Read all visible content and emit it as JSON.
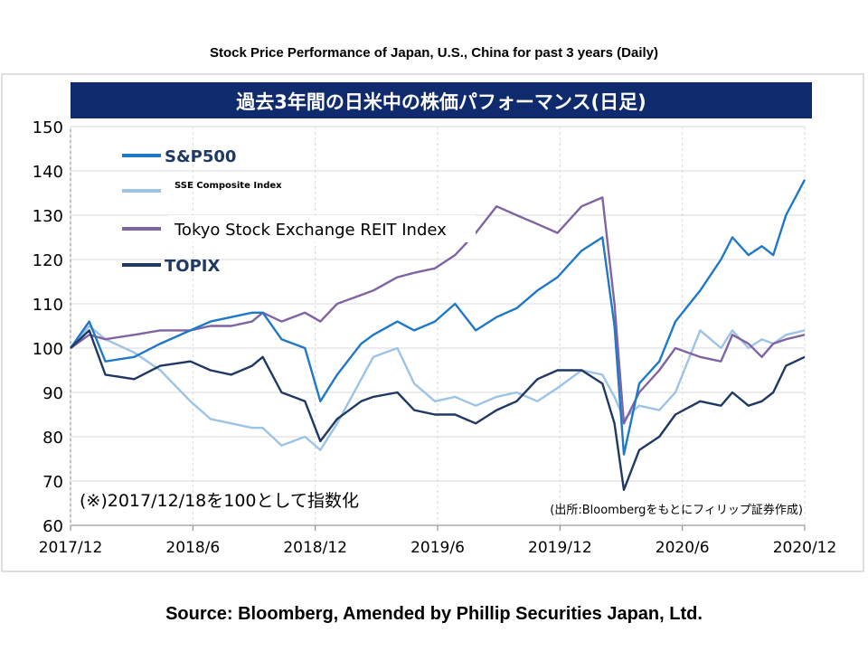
{
  "page_title": "Stock Price Performance of Japan, U.S., China for past 3 years (Daily)",
  "source_text": "Source: Bloomberg, Amended by Phillip Securities Japan, Ltd.",
  "chart_data": {
    "type": "line",
    "title": "過去3年間の日米中の株価パフォーマンス(日足)",
    "note": "(※)2017/12/18を100として指数化",
    "source_note": "(出所:Bloombergをもとにフィリップ証券作成)",
    "xlabel": "",
    "ylabel": "",
    "ylim": [
      60,
      150
    ],
    "y_ticks": [
      60,
      70,
      80,
      90,
      100,
      110,
      120,
      130,
      140,
      150
    ],
    "x_ticks": [
      "2017/12",
      "2018/6",
      "2018/12",
      "2019/6",
      "2019/12",
      "2020/6",
      "2020/12"
    ],
    "grid": true,
    "legend_position": "top-left",
    "x": [
      "2017-12-18",
      "2018-01-15",
      "2018-02-08",
      "2018-03-23",
      "2018-05-01",
      "2018-06-15",
      "2018-07-15",
      "2018-08-15",
      "2018-09-15",
      "2018-10-01",
      "2018-10-29",
      "2018-12-03",
      "2018-12-26",
      "2019-01-20",
      "2019-02-25",
      "2019-03-15",
      "2019-04-20",
      "2019-05-15",
      "2019-06-15",
      "2019-07-15",
      "2019-08-15",
      "2019-09-15",
      "2019-10-15",
      "2019-11-15",
      "2019-12-15",
      "2020-01-20",
      "2020-02-20",
      "2020-03-09",
      "2020-03-23",
      "2020-04-15",
      "2020-05-15",
      "2020-06-08",
      "2020-07-15",
      "2020-08-15",
      "2020-09-01",
      "2020-09-25",
      "2020-10-15",
      "2020-11-01",
      "2020-11-20",
      "2020-12-18"
    ],
    "series": [
      {
        "name": "S&P500",
        "color": "#1f78c8",
        "values": [
          100,
          106,
          97,
          98,
          101,
          104,
          106,
          107,
          108,
          108,
          102,
          100,
          88,
          94,
          101,
          103,
          106,
          104,
          106,
          110,
          104,
          107,
          109,
          113,
          116,
          122,
          125,
          105,
          76,
          92,
          97,
          106,
          113,
          120,
          125,
          121,
          123,
          121,
          130,
          138
        ]
      },
      {
        "name": "SSE Composite Index",
        "color": "#9dc3e6",
        "values": [
          100,
          105,
          102,
          99,
          95,
          88,
          84,
          83,
          82,
          82,
          78,
          80,
          77,
          83,
          93,
          98,
          100,
          92,
          88,
          89,
          87,
          89,
          90,
          88,
          91,
          95,
          94,
          89,
          84,
          87,
          86,
          90,
          104,
          100,
          104,
          100,
          102,
          101,
          103,
          104
        ]
      },
      {
        "name": "Tokyo Stock Exchange REIT Index",
        "color": "#8064a2",
        "values": [
          100,
          103,
          102,
          103,
          104,
          104,
          105,
          105,
          106,
          108,
          106,
          108,
          106,
          110,
          112,
          113,
          116,
          117,
          118,
          121,
          126,
          132,
          130,
          128,
          126,
          132,
          134,
          110,
          83,
          90,
          95,
          100,
          98,
          97,
          103,
          101,
          98,
          101,
          102,
          103
        ]
      },
      {
        "name": "TOPIX",
        "color": "#1f3864",
        "values": [
          100,
          104,
          94,
          93,
          96,
          97,
          95,
          94,
          96,
          98,
          90,
          88,
          79,
          84,
          88,
          89,
          90,
          86,
          85,
          85,
          83,
          86,
          88,
          93,
          95,
          95,
          92,
          83,
          68,
          77,
          80,
          85,
          88,
          87,
          90,
          87,
          88,
          90,
          96,
          98
        ]
      }
    ]
  }
}
